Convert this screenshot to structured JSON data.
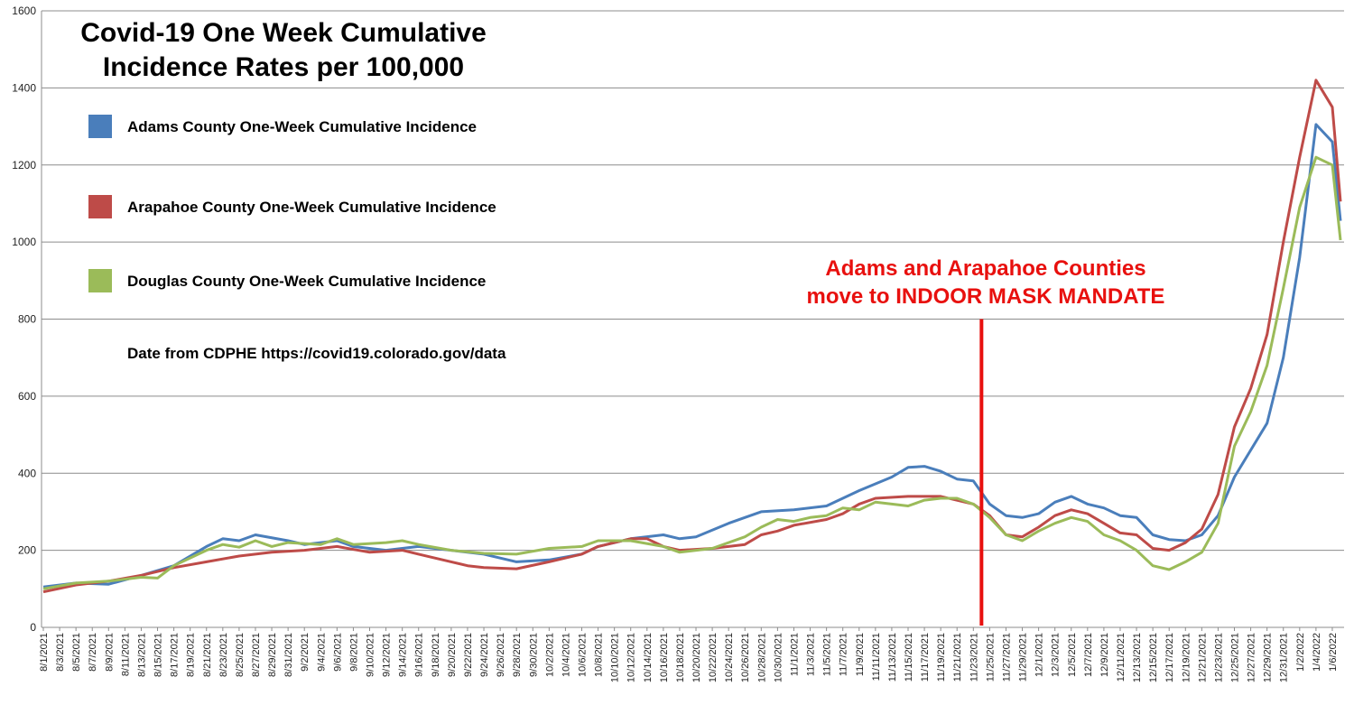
{
  "chart_data": {
    "type": "line",
    "title_lines": [
      "Covid-19 One Week Cumulative",
      "Incidence Rates per 100,000"
    ],
    "source_note": "Date from CDPHE https://covid19.colorado.gov/data",
    "annotation_lines": [
      "Adams and Arapahoe Counties",
      "move to INDOOR MASK MANDATE"
    ],
    "annotation_date": "11/24/2021",
    "annotation_color": "#e8100e",
    "ylim": [
      0,
      1600
    ],
    "yticks": [
      0,
      200,
      400,
      600,
      800,
      1000,
      1200,
      1400,
      1600
    ],
    "grid": true,
    "legend_position": "top-left",
    "x_start": "8/1/2021",
    "x_end": "1/7/2022",
    "xtick_labels": [
      "8/1/2021",
      "8/3/2021",
      "8/5/2021",
      "8/7/2021",
      "8/9/2021",
      "8/11/2021",
      "8/13/2021",
      "8/15/2021",
      "8/17/2021",
      "8/19/2021",
      "8/21/2021",
      "8/23/2021",
      "8/25/2021",
      "8/27/2021",
      "8/29/2021",
      "8/31/2021",
      "9/2/2021",
      "9/4/2021",
      "9/6/2021",
      "9/8/2021",
      "9/10/2021",
      "9/12/2021",
      "9/14/2021",
      "9/16/2021",
      "9/18/2021",
      "9/20/2021",
      "9/22/2021",
      "9/24/2021",
      "9/26/2021",
      "9/28/2021",
      "9/30/2021",
      "10/2/2021",
      "10/4/2021",
      "10/6/2021",
      "10/8/2021",
      "10/10/2021",
      "10/12/2021",
      "10/14/2021",
      "10/16/2021",
      "10/18/2021",
      "10/20/2021",
      "10/22/2021",
      "10/24/2021",
      "10/26/2021",
      "10/28/2021",
      "10/30/2021",
      "11/1/2021",
      "11/3/2021",
      "11/5/2021",
      "11/7/2021",
      "11/9/2021",
      "11/11/2021",
      "11/13/2021",
      "11/15/2021",
      "11/17/2021",
      "11/19/2021",
      "11/21/2021",
      "11/23/2021",
      "11/25/2021",
      "11/27/2021",
      "11/29/2021",
      "12/1/2021",
      "12/3/2021",
      "12/5/2021",
      "12/7/2021",
      "12/9/2021",
      "12/11/2021",
      "12/13/2021",
      "12/15/2021",
      "12/17/2021",
      "12/19/2021",
      "12/21/2021",
      "12/23/2021",
      "12/25/2021",
      "12/27/2021",
      "12/29/2021",
      "12/31/2021",
      "1/2/2022",
      "1/4/2022",
      "1/6/2022"
    ],
    "series": [
      {
        "name": "Adams County One-Week Cumulative Incidence",
        "color": "#4a7ebb",
        "points": [
          [
            "8/1/2021",
            105
          ],
          [
            "8/5/2021",
            115
          ],
          [
            "8/9/2021",
            112
          ],
          [
            "8/13/2021",
            135
          ],
          [
            "8/17/2021",
            160
          ],
          [
            "8/21/2021",
            210
          ],
          [
            "8/23/2021",
            230
          ],
          [
            "8/25/2021",
            225
          ],
          [
            "8/27/2021",
            240
          ],
          [
            "8/31/2021",
            225
          ],
          [
            "9/2/2021",
            215
          ],
          [
            "9/6/2021",
            225
          ],
          [
            "9/8/2021",
            210
          ],
          [
            "9/12/2021",
            200
          ],
          [
            "9/16/2021",
            210
          ],
          [
            "9/20/2021",
            200
          ],
          [
            "9/24/2021",
            190
          ],
          [
            "9/26/2021",
            180
          ],
          [
            "9/28/2021",
            170
          ],
          [
            "10/2/2021",
            175
          ],
          [
            "10/6/2021",
            190
          ],
          [
            "10/8/2021",
            210
          ],
          [
            "10/12/2021",
            230
          ],
          [
            "10/16/2021",
            240
          ],
          [
            "10/18/2021",
            230
          ],
          [
            "10/20/2021",
            235
          ],
          [
            "10/24/2021",
            270
          ],
          [
            "10/26/2021",
            285
          ],
          [
            "10/28/2021",
            300
          ],
          [
            "11/1/2021",
            305
          ],
          [
            "11/5/2021",
            315
          ],
          [
            "11/9/2021",
            355
          ],
          [
            "11/13/2021",
            390
          ],
          [
            "11/15/2021",
            415
          ],
          [
            "11/17/2021",
            418
          ],
          [
            "11/19/2021",
            405
          ],
          [
            "11/21/2021",
            385
          ],
          [
            "11/23/2021",
            380
          ],
          [
            "11/25/2021",
            320
          ],
          [
            "11/27/2021",
            290
          ],
          [
            "11/29/2021",
            285
          ],
          [
            "12/1/2021",
            295
          ],
          [
            "12/3/2021",
            325
          ],
          [
            "12/5/2021",
            340
          ],
          [
            "12/7/2021",
            320
          ],
          [
            "12/9/2021",
            310
          ],
          [
            "12/11/2021",
            290
          ],
          [
            "12/13/2021",
            285
          ],
          [
            "12/15/2021",
            240
          ],
          [
            "12/17/2021",
            228
          ],
          [
            "12/19/2021",
            225
          ],
          [
            "12/21/2021",
            240
          ],
          [
            "12/23/2021",
            290
          ],
          [
            "12/25/2021",
            390
          ],
          [
            "12/27/2021",
            460
          ],
          [
            "12/29/2021",
            530
          ],
          [
            "12/31/2021",
            700
          ],
          [
            "1/2/2022",
            960
          ],
          [
            "1/4/2022",
            1305
          ],
          [
            "1/6/2022",
            1260
          ],
          [
            "1/7/2022",
            1055
          ]
        ]
      },
      {
        "name": "Arapahoe County One-Week Cumulative Incidence",
        "color": "#be4b48",
        "points": [
          [
            "8/1/2021",
            92
          ],
          [
            "8/5/2021",
            110
          ],
          [
            "8/9/2021",
            120
          ],
          [
            "8/13/2021",
            135
          ],
          [
            "8/17/2021",
            155
          ],
          [
            "8/21/2021",
            170
          ],
          [
            "8/25/2021",
            185
          ],
          [
            "8/29/2021",
            195
          ],
          [
            "9/2/2021",
            200
          ],
          [
            "9/6/2021",
            210
          ],
          [
            "9/10/2021",
            195
          ],
          [
            "9/14/2021",
            200
          ],
          [
            "9/16/2021",
            190
          ],
          [
            "9/18/2021",
            180
          ],
          [
            "9/20/2021",
            170
          ],
          [
            "9/22/2021",
            160
          ],
          [
            "9/24/2021",
            155
          ],
          [
            "9/28/2021",
            152
          ],
          [
            "10/2/2021",
            170
          ],
          [
            "10/6/2021",
            190
          ],
          [
            "10/8/2021",
            210
          ],
          [
            "10/12/2021",
            230
          ],
          [
            "10/14/2021",
            230
          ],
          [
            "10/16/2021",
            210
          ],
          [
            "10/18/2021",
            200
          ],
          [
            "10/22/2021",
            205
          ],
          [
            "10/26/2021",
            215
          ],
          [
            "10/28/2021",
            240
          ],
          [
            "10/30/2021",
            250
          ],
          [
            "11/1/2021",
            265
          ],
          [
            "11/5/2021",
            280
          ],
          [
            "11/7/2021",
            295
          ],
          [
            "11/9/2021",
            320
          ],
          [
            "11/11/2021",
            335
          ],
          [
            "11/15/2021",
            340
          ],
          [
            "11/19/2021",
            340
          ],
          [
            "11/23/2021",
            320
          ],
          [
            "11/25/2021",
            290
          ],
          [
            "11/27/2021",
            240
          ],
          [
            "11/29/2021",
            235
          ],
          [
            "12/1/2021",
            260
          ],
          [
            "12/3/2021",
            290
          ],
          [
            "12/5/2021",
            305
          ],
          [
            "12/7/2021",
            295
          ],
          [
            "12/9/2021",
            270
          ],
          [
            "12/11/2021",
            245
          ],
          [
            "12/13/2021",
            240
          ],
          [
            "12/15/2021",
            205
          ],
          [
            "12/17/2021",
            200
          ],
          [
            "12/19/2021",
            220
          ],
          [
            "12/21/2021",
            255
          ],
          [
            "12/23/2021",
            345
          ],
          [
            "12/25/2021",
            520
          ],
          [
            "12/27/2021",
            620
          ],
          [
            "12/29/2021",
            760
          ],
          [
            "12/31/2021",
            1000
          ],
          [
            "1/2/2022",
            1220
          ],
          [
            "1/4/2022",
            1420
          ],
          [
            "1/6/2022",
            1350
          ],
          [
            "1/7/2022",
            1105
          ]
        ]
      },
      {
        "name": "Douglas County One-Week Cumulative Incidence",
        "color": "#9bbb59",
        "points": [
          [
            "8/1/2021",
            100
          ],
          [
            "8/5/2021",
            115
          ],
          [
            "8/9/2021",
            120
          ],
          [
            "8/13/2021",
            130
          ],
          [
            "8/15/2021",
            128
          ],
          [
            "8/17/2021",
            160
          ],
          [
            "8/21/2021",
            200
          ],
          [
            "8/23/2021",
            215
          ],
          [
            "8/25/2021",
            208
          ],
          [
            "8/27/2021",
            225
          ],
          [
            "8/29/2021",
            210
          ],
          [
            "8/31/2021",
            220
          ],
          [
            "9/4/2021",
            215
          ],
          [
            "9/6/2021",
            230
          ],
          [
            "9/8/2021",
            215
          ],
          [
            "9/12/2021",
            220
          ],
          [
            "9/14/2021",
            225
          ],
          [
            "9/16/2021",
            215
          ],
          [
            "9/20/2021",
            200
          ],
          [
            "9/24/2021",
            192
          ],
          [
            "9/28/2021",
            190
          ],
          [
            "10/2/2021",
            205
          ],
          [
            "10/6/2021",
            210
          ],
          [
            "10/8/2021",
            225
          ],
          [
            "10/12/2021",
            225
          ],
          [
            "10/16/2021",
            210
          ],
          [
            "10/18/2021",
            195
          ],
          [
            "10/22/2021",
            205
          ],
          [
            "10/26/2021",
            235
          ],
          [
            "10/28/2021",
            260
          ],
          [
            "10/30/2021",
            280
          ],
          [
            "11/1/2021",
            275
          ],
          [
            "11/3/2021",
            285
          ],
          [
            "11/5/2021",
            290
          ],
          [
            "11/7/2021",
            310
          ],
          [
            "11/9/2021",
            305
          ],
          [
            "11/11/2021",
            325
          ],
          [
            "11/15/2021",
            315
          ],
          [
            "11/17/2021",
            330
          ],
          [
            "11/19/2021",
            335
          ],
          [
            "11/21/2021",
            335
          ],
          [
            "11/23/2021",
            320
          ],
          [
            "11/25/2021",
            285
          ],
          [
            "11/27/2021",
            240
          ],
          [
            "11/29/2021",
            225
          ],
          [
            "12/1/2021",
            250
          ],
          [
            "12/3/2021",
            270
          ],
          [
            "12/5/2021",
            285
          ],
          [
            "12/7/2021",
            275
          ],
          [
            "12/9/2021",
            240
          ],
          [
            "12/11/2021",
            225
          ],
          [
            "12/13/2021",
            200
          ],
          [
            "12/15/2021",
            160
          ],
          [
            "12/17/2021",
            150
          ],
          [
            "12/19/2021",
            170
          ],
          [
            "12/21/2021",
            195
          ],
          [
            "12/23/2021",
            270
          ],
          [
            "12/25/2021",
            470
          ],
          [
            "12/27/2021",
            560
          ],
          [
            "12/29/2021",
            680
          ],
          [
            "12/31/2021",
            880
          ],
          [
            "1/2/2022",
            1090
          ],
          [
            "1/4/2022",
            1220
          ],
          [
            "1/6/2022",
            1200
          ],
          [
            "1/7/2022",
            1005
          ]
        ]
      }
    ]
  }
}
